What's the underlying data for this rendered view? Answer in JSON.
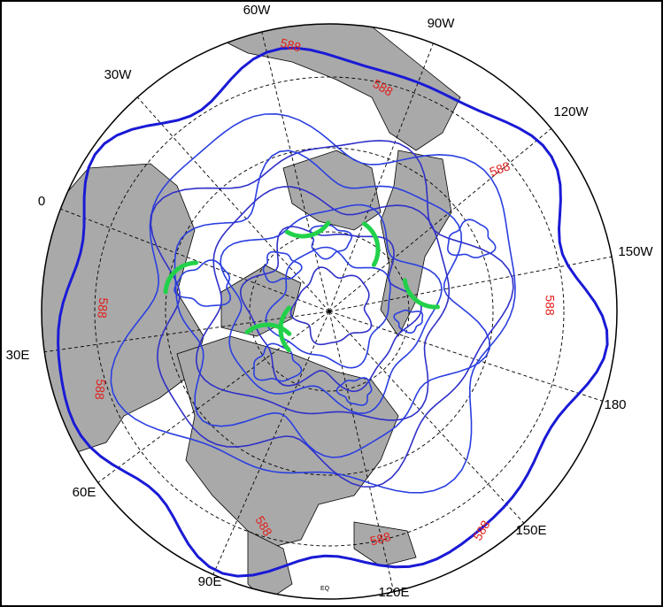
{
  "map": {
    "longitude_labels": [
      "60W",
      "90W",
      "30W",
      "120W",
      "0",
      "150W",
      "30E",
      "180",
      "60E",
      "150E",
      "90E",
      "120E"
    ],
    "contour_labels": [
      "588",
      "588",
      "588",
      "588",
      "588",
      "588",
      "588",
      "588",
      "588"
    ],
    "equator_label": "EQ"
  }
}
